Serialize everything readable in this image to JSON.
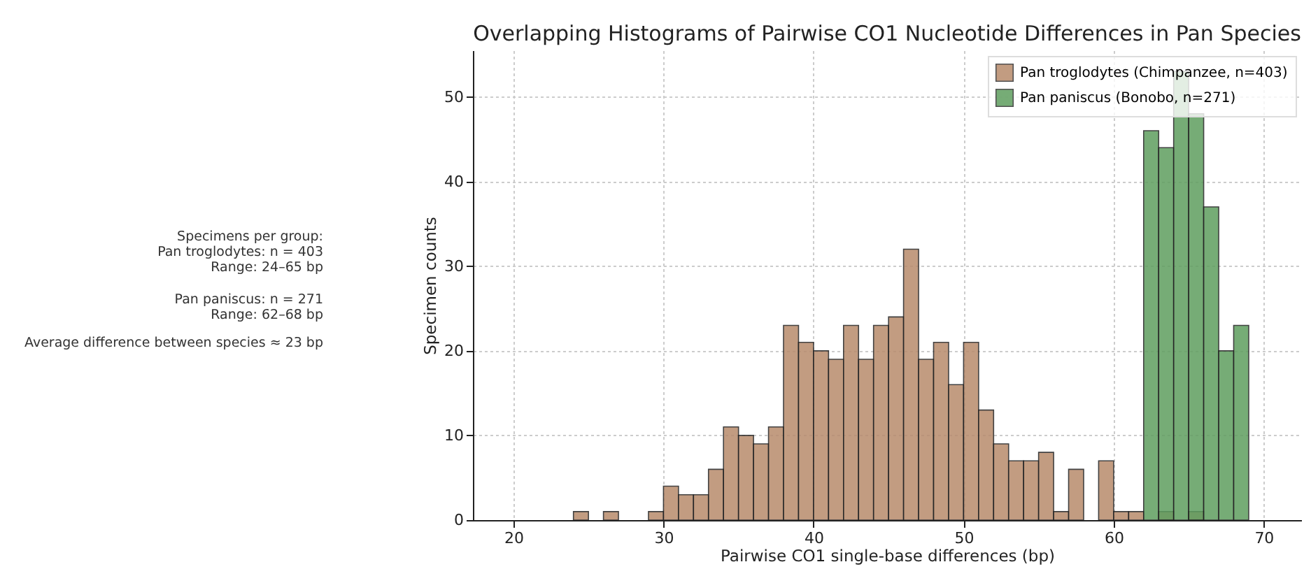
{
  "chart_data": {
    "type": "histogram",
    "title": "Overlapping Histograms of Pairwise CO1 Nucleotide Differences in Pan Species",
    "xlabel": "Pairwise CO1 single-base differences (bp)",
    "ylabel": "Specimen counts",
    "bins": [
      24,
      25,
      26,
      27,
      28,
      29,
      30,
      31,
      32,
      33,
      34,
      35,
      36,
      37,
      38,
      39,
      40,
      41,
      42,
      43,
      44,
      45,
      46,
      47,
      48,
      49,
      50,
      51,
      52,
      53,
      54,
      55,
      56,
      57,
      58,
      59,
      60,
      61,
      62,
      63,
      64,
      65,
      66,
      67,
      68,
      69
    ],
    "series": [
      {
        "name": "Pan troglodytes (Chimpanzee, n=403)",
        "color": "#b88b6c",
        "values": [
          1,
          0,
          1,
          0,
          0,
          1,
          4,
          3,
          3,
          6,
          11,
          10,
          9,
          11,
          23,
          21,
          20,
          19,
          23,
          19,
          23,
          24,
          32,
          19,
          21,
          16,
          21,
          13,
          9,
          7,
          7,
          8,
          1,
          6,
          0,
          7,
          1,
          1,
          0,
          1,
          0,
          1,
          0,
          0,
          0
        ]
      },
      {
        "name": "Pan paniscus (Bonobo, n=271)",
        "color": "#5f9e5f",
        "values": [
          0,
          0,
          0,
          0,
          0,
          0,
          0,
          0,
          0,
          0,
          0,
          0,
          0,
          0,
          0,
          0,
          0,
          0,
          0,
          0,
          0,
          0,
          0,
          0,
          0,
          0,
          0,
          0,
          0,
          0,
          0,
          0,
          0,
          0,
          0,
          0,
          0,
          0,
          46,
          44,
          53,
          48,
          37,
          20,
          23
        ]
      }
    ],
    "xlim": [
      17.3,
      72.5
    ],
    "ylim": [
      0,
      55.5
    ],
    "xticks": [
      20,
      30,
      40,
      50,
      60,
      70
    ],
    "yticks": [
      0,
      10,
      20,
      30,
      40,
      50
    ],
    "grid": true,
    "legend": "top right",
    "annotations": [
      "Specimens per group:\nPan troglodytes: n = 403\nRange: 24–65 bp",
      "Pan paniscus: n = 271\nRange: 62–68 bp",
      "Average difference between species ≈ 23 bp"
    ]
  }
}
